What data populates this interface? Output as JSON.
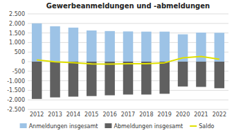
{
  "chart_data": {
    "type": "bar",
    "title": "Gewerbeanmeldungen und -abmeldungen",
    "categories": [
      "2012",
      "2013",
      "2014",
      "2015",
      "2016",
      "2017",
      "2018",
      "2019",
      "2020",
      "2021",
      "2022"
    ],
    "series": [
      {
        "name": "Anmeldungen insgesamt",
        "type": "bar",
        "color": "#9dc3e6",
        "values": [
          2000,
          1850,
          1780,
          1630,
          1600,
          1580,
          1570,
          1570,
          1430,
          1520,
          1510
        ]
      },
      {
        "name": "Abmeldungen insgesamt",
        "type": "bar",
        "color": "#606060",
        "values": [
          -1950,
          -1870,
          -1830,
          -1800,
          -1760,
          -1720,
          -1720,
          -1680,
          -1300,
          -1320,
          -1390
        ]
      },
      {
        "name": "Saldo",
        "type": "line",
        "color": "#e0e000",
        "values": [
          90,
          -10,
          -50,
          -120,
          -130,
          -110,
          -110,
          -60,
          200,
          270,
          130
        ]
      }
    ],
    "ylim": [
      -2500,
      2500
    ],
    "yticks": [
      {
        "value": -2500,
        "label": "-2.500"
      },
      {
        "value": -2000,
        "label": "-2.000"
      },
      {
        "value": -1500,
        "label": "-1.500"
      },
      {
        "value": -1000,
        "label": "-1.000"
      },
      -500,
      0,
      500,
      {
        "value": 1000,
        "label": "1.000"
      },
      {
        "value": 1500,
        "label": "1.500"
      },
      {
        "value": 2000,
        "label": "2.000"
      },
      {
        "value": 2500,
        "label": "2.500"
      }
    ],
    "grid": true,
    "legend": "bottom"
  }
}
